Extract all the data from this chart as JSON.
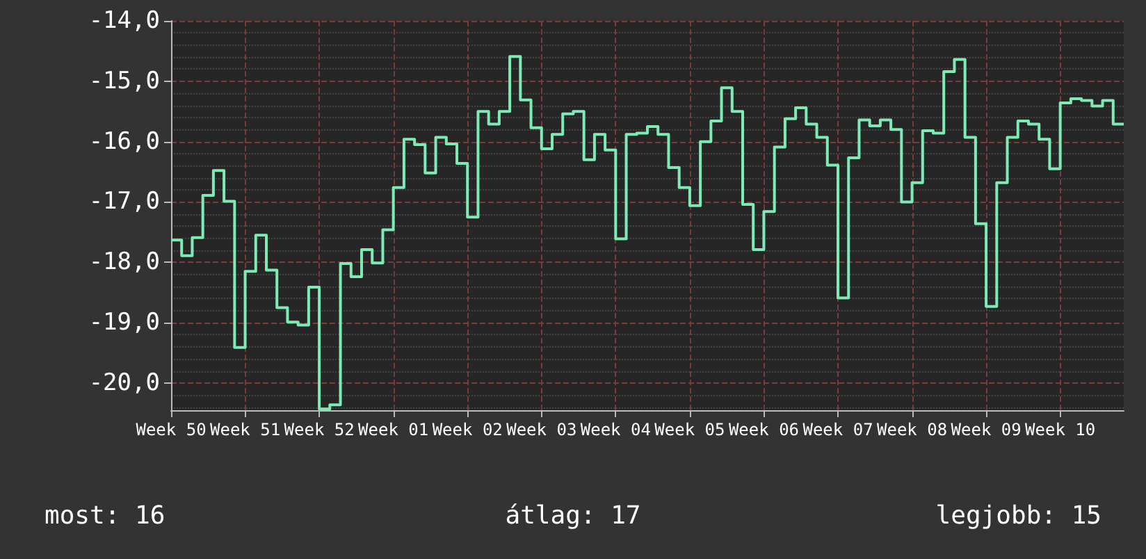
{
  "chart_data": {
    "type": "step",
    "color": "#7eeab4",
    "categories": [
      "Week 50",
      null,
      null,
      null,
      null,
      null,
      null,
      "Week 51",
      null,
      null,
      null,
      null,
      null,
      null,
      "Week 52",
      null,
      null,
      null,
      null,
      null,
      null,
      "Week 01",
      null,
      null,
      null,
      null,
      null,
      null,
      "Week 02",
      null,
      null,
      null,
      null,
      null,
      null,
      "Week 03",
      null,
      null,
      null,
      null,
      null,
      null,
      "Week 04",
      null,
      null,
      null,
      null,
      null,
      null,
      "Week 05",
      null,
      null,
      null,
      null,
      null,
      null,
      "Week 06",
      null,
      null,
      null,
      null,
      null,
      null,
      "Week 07",
      null,
      null,
      null,
      null,
      null,
      null,
      "Week 08",
      null,
      null,
      null,
      null,
      null,
      null,
      "Week 09",
      null,
      null,
      null,
      null,
      null,
      null,
      "Week 10",
      null,
      null,
      null,
      null,
      null,
      null
    ],
    "values": [
      -17.63,
      -17.89,
      -17.59,
      -16.89,
      -16.48,
      -16.99,
      -19.41,
      -18.15,
      -17.55,
      -18.13,
      -18.75,
      -18.99,
      -19.04,
      -18.41,
      -20.43,
      -20.36,
      -18.02,
      -18.24,
      -17.79,
      -18.01,
      -17.46,
      -16.76,
      -15.96,
      -16.05,
      -16.52,
      -15.93,
      -16.04,
      -16.36,
      -17.25,
      -15.5,
      -15.71,
      -15.5,
      -14.59,
      -15.31,
      -15.77,
      -16.12,
      -15.88,
      -15.54,
      -15.5,
      -16.3,
      -15.88,
      -16.14,
      -17.61,
      -15.88,
      -15.86,
      -15.75,
      -15.88,
      -16.43,
      -16.76,
      -17.06,
      -16.0,
      -15.66,
      -15.11,
      -15.5,
      -17.04,
      -17.79,
      -17.16,
      -16.09,
      -15.62,
      -15.44,
      -15.71,
      -15.93,
      -16.39,
      -18.59,
      -16.27,
      -15.64,
      -15.74,
      -15.64,
      -15.8,
      -17.0,
      -16.68,
      -15.82,
      -15.86,
      -14.84,
      -14.64,
      -15.93,
      -17.36,
      -18.73,
      -16.68,
      -15.93,
      -15.66,
      -15.71,
      -15.96,
      -16.45,
      -15.36,
      -15.29,
      -15.32,
      -15.41,
      -15.32,
      -15.71,
      -15.71
    ],
    "ylim": [
      -20.45,
      -14
    ],
    "yticks": [
      {
        "value": -20,
        "label": "-20,0"
      },
      {
        "value": -19,
        "label": "-19,0"
      },
      {
        "value": -18,
        "label": "-18,0"
      },
      {
        "value": -17,
        "label": "-17,0"
      },
      {
        "value": -16,
        "label": "-16,0"
      },
      {
        "value": -15,
        "label": "-15,0"
      },
      {
        "value": -14,
        "label": "-14,0"
      }
    ],
    "grid": true,
    "line_style": "solid",
    "marker": "none",
    "annotations": [
      "most: 16",
      "átlag: 17",
      "legjobb: 15"
    ]
  }
}
